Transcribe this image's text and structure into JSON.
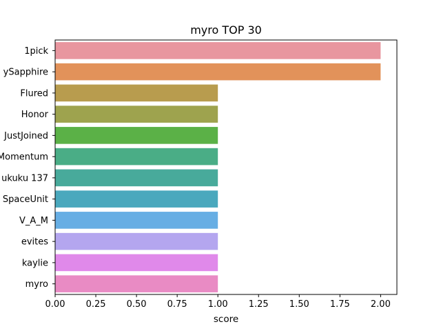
{
  "chart_data": {
    "type": "bar",
    "orientation": "horizontal",
    "title": "myro TOP 30",
    "xlabel": "score",
    "ylabel": "",
    "xlim": [
      0,
      2.1
    ],
    "xticks": [
      "0.00",
      "0.25",
      "0.50",
      "0.75",
      "1.00",
      "1.25",
      "1.50",
      "1.75",
      "2.00"
    ],
    "xtick_values": [
      0,
      0.25,
      0.5,
      0.75,
      1.0,
      1.25,
      1.5,
      1.75,
      2.0
    ],
    "categories": [
      "1pick",
      "ySapphire",
      "Flured",
      "Honor",
      "JustJoined",
      "Momentum",
      "ukuku 137",
      "SpaceUnit",
      "V_A_M",
      "evites",
      "kaylie",
      "myro"
    ],
    "values": [
      2,
      2,
      1,
      1,
      1,
      1,
      1,
      1,
      1,
      1,
      1,
      1
    ],
    "colors": [
      "#e8969f",
      "#e2925a",
      "#b89c4e",
      "#9ea34e",
      "#5bb147",
      "#4aad86",
      "#48aa9b",
      "#4aa8bd",
      "#67aee4",
      "#b4a6ef",
      "#e089ea",
      "#e98bc4"
    ],
    "grid": false,
    "legend": "none"
  }
}
